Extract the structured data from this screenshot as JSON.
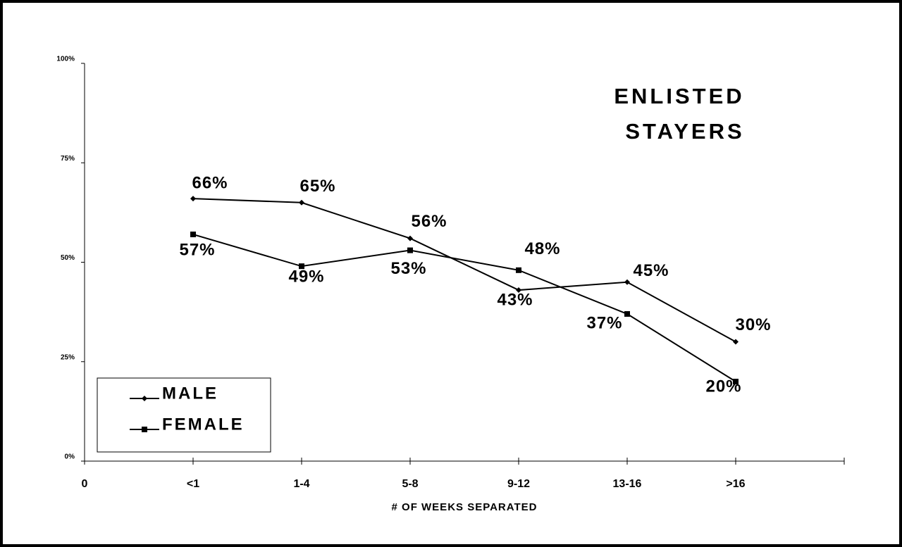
{
  "chart_data": {
    "type": "line",
    "title": [
      "ENLISTED",
      "STAYERS"
    ],
    "x_label": "# OF WEEKS SEPARATED",
    "categories": [
      "0",
      "<1",
      "1-4",
      "5-8",
      "9-12",
      "13-16",
      ">16",
      null
    ],
    "series": [
      {
        "name": "MALE",
        "color": "#000000",
        "marker": "diamond",
        "values": [
          null,
          66,
          65,
          56,
          43,
          45,
          30,
          null
        ],
        "value_labels": [
          null,
          "66%",
          "65%",
          "56%",
          "43%",
          "45%",
          "30%",
          null
        ]
      },
      {
        "name": "FEMALE",
        "color": "#000000",
        "marker": "square",
        "values": [
          null,
          57,
          49,
          53,
          48,
          37,
          20,
          null
        ],
        "value_labels": [
          null,
          "57%",
          "49%",
          "53%",
          "48%",
          "37%",
          "20%",
          null
        ]
      }
    ],
    "ylim": [
      0,
      100
    ],
    "yticks": [
      {
        "value": 0,
        "label": "0%"
      },
      {
        "value": 25,
        "label": "25%"
      },
      {
        "value": 50,
        "label": "50%"
      },
      {
        "value": 75,
        "label": "75%"
      },
      {
        "value": 100,
        "label": "100%"
      }
    ],
    "grid": false,
    "legend": "lower left"
  }
}
